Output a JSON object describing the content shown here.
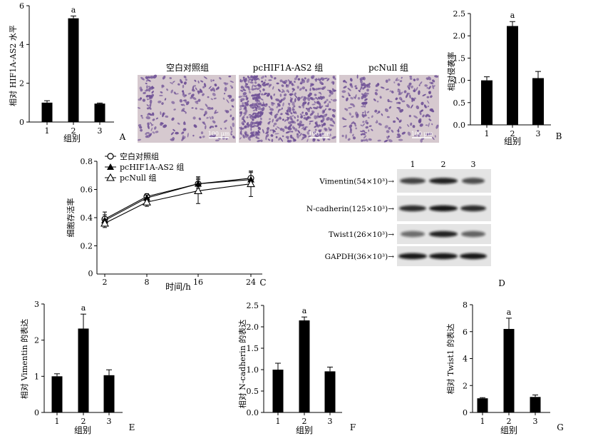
{
  "panels": {
    "A": {
      "letter": "A",
      "ylabel": "相对 HIF1A-AS2 水平",
      "xlabel": "组别"
    },
    "B": {
      "letter": "B",
      "ylabel": "相对侵袭率",
      "xlabel": "组别"
    },
    "C": {
      "letter": "C",
      "ylabel": "细胞存活率",
      "xlabel": "时间/h"
    },
    "D": {
      "letter": "D"
    },
    "E": {
      "letter": "E",
      "ylabel": "相对 Vimentin 的表达",
      "xlabel": "组别"
    },
    "F": {
      "letter": "F",
      "ylabel": "相对 N-cadherin 的表达",
      "xlabel": "组别"
    },
    "G": {
      "letter": "G",
      "ylabel": "相对 Twist1 的表达",
      "xlabel": "组别"
    }
  },
  "images": {
    "labels": [
      "空白对照组",
      "pcHIF1A-AS2 组",
      "pcNull 组"
    ],
    "scale_bar": "100 μm",
    "bg": "#d6c9cf",
    "dot": "#6d4f95"
  },
  "blot": {
    "lanes": [
      "1",
      "2",
      "3"
    ],
    "rows": [
      {
        "label": "Vimentin(54×10³)→"
      },
      {
        "label": "N-cadherin(125×10³)→"
      },
      {
        "label": "Twist1(26×10³)→"
      },
      {
        "label": "GAPDH(36×10³)→"
      }
    ]
  },
  "chart_data": [
    {
      "id": "A",
      "type": "bar",
      "categories": [
        "1",
        "2",
        "3"
      ],
      "values": [
        1.0,
        5.35,
        0.95
      ],
      "errors": [
        0.1,
        0.12,
        0.03
      ],
      "annotations": [
        "",
        "a",
        ""
      ],
      "ylim": [
        0,
        6
      ],
      "yticks": [
        0,
        2,
        4,
        6
      ],
      "xlabel": "组别",
      "ylabel": "相对 HIF1A-AS2 水平"
    },
    {
      "id": "B",
      "type": "bar",
      "categories": [
        "1",
        "2",
        "3"
      ],
      "values": [
        1.0,
        2.22,
        1.05
      ],
      "errors": [
        0.08,
        0.1,
        0.15
      ],
      "annotations": [
        "",
        "a",
        ""
      ],
      "ylim": [
        0,
        2.5
      ],
      "yticks": [
        0,
        0.5,
        1.0,
        1.5,
        2.0,
        2.5
      ],
      "xlabel": "组别",
      "ylabel": "相对侵袭率"
    },
    {
      "id": "C",
      "type": "line",
      "x": [
        2,
        8,
        16,
        24
      ],
      "xticks": [
        2,
        8,
        16,
        24
      ],
      "ylim": [
        0,
        0.8
      ],
      "yticks": [
        0.2,
        0.4,
        0.6,
        0.8
      ],
      "xlabel": "时间/h",
      "ylabel": "细胞存活率",
      "series": [
        {
          "name": "空白对照组",
          "marker": "open-circle",
          "values": [
            0.39,
            0.55,
            0.64,
            0.68
          ],
          "errors": [
            0.05,
            0.02,
            0.03,
            0.05
          ]
        },
        {
          "name": "pcHIF1A-AS2 组",
          "marker": "filled-triangle",
          "values": [
            0.38,
            0.54,
            0.64,
            0.67
          ],
          "errors": [
            0.04,
            0.02,
            0.05,
            0.05
          ]
        },
        {
          "name": "pcNull 组",
          "marker": "open-triangle",
          "values": [
            0.36,
            0.51,
            0.59,
            0.64
          ],
          "errors": [
            0.03,
            0.03,
            0.09,
            0.09
          ]
        }
      ]
    },
    {
      "id": "E",
      "type": "bar",
      "categories": [
        "1",
        "2",
        "3"
      ],
      "values": [
        1.0,
        2.32,
        1.03
      ],
      "errors": [
        0.07,
        0.4,
        0.15
      ],
      "annotations": [
        "",
        "a",
        ""
      ],
      "ylim": [
        0,
        3
      ],
      "yticks": [
        0,
        1,
        2,
        3
      ],
      "xlabel": "组别",
      "ylabel": "相对 Vimentin 的表达"
    },
    {
      "id": "F",
      "type": "bar",
      "categories": [
        "1",
        "2",
        "3"
      ],
      "values": [
        1.0,
        2.15,
        0.96
      ],
      "errors": [
        0.15,
        0.08,
        0.1
      ],
      "annotations": [
        "",
        "a",
        ""
      ],
      "ylim": [
        0,
        2.5
      ],
      "yticks": [
        0,
        0.5,
        1.0,
        1.5,
        2.0,
        2.5
      ],
      "xlabel": "组别",
      "ylabel": "相对 N-cadherin 的表达"
    },
    {
      "id": "G",
      "type": "bar",
      "categories": [
        "1",
        "2",
        "3"
      ],
      "values": [
        1.05,
        6.2,
        1.15
      ],
      "errors": [
        0.05,
        0.8,
        0.15
      ],
      "annotations": [
        "",
        "a",
        ""
      ],
      "ylim": [
        0,
        8
      ],
      "yticks": [
        0,
        2,
        4,
        6,
        8
      ],
      "xlabel": "组别",
      "ylabel": "相对 Twist1 的表达"
    }
  ]
}
